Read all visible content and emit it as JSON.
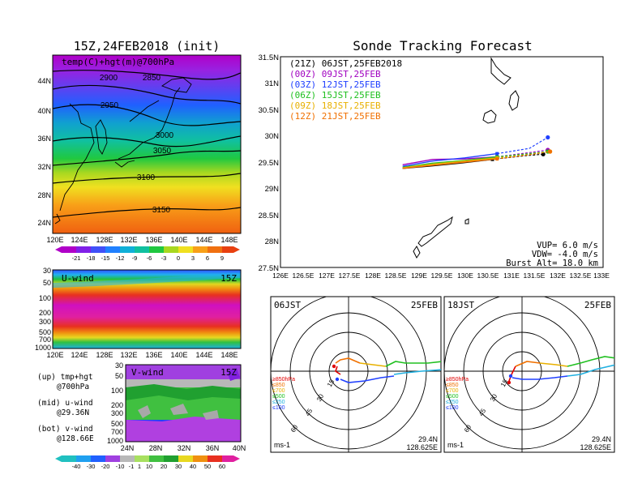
{
  "left": {
    "map_title": "15Z,24FEB2018 (init)",
    "map_subtitle": "temp(C)+hgt(m)@700hPa",
    "lat_labels": [
      "44N",
      "40N",
      "36N",
      "32N",
      "28N",
      "24N"
    ],
    "lon_labels": [
      "120E",
      "124E",
      "128E",
      "132E",
      "136E",
      "140E",
      "144E",
      "148E"
    ],
    "contour_labels": [
      "2900",
      "2850",
      "2950",
      "3000",
      "3050",
      "3100",
      "3150"
    ],
    "temp_colorbar": [
      "-21",
      "-18",
      "-15",
      "-12",
      "-9",
      "-6",
      "-3",
      "0",
      "3",
      "6",
      "9"
    ],
    "uwind_title": "U-wind",
    "uwind_time": "15Z",
    "pressure_labels": [
      "30",
      "50",
      "100",
      "200",
      "300",
      "500",
      "700",
      "1000"
    ],
    "vwind_title": "V-wind",
    "vwind_time": "15Z",
    "vwind_lat_labels": [
      "24N",
      "28N",
      "32N",
      "36N",
      "40N"
    ],
    "legend_up": "(up) tmp+hgt",
    "legend_up2": "@700hPa",
    "legend_mid": "(mid) u-wind",
    "legend_mid2": "@29.36N",
    "legend_bot": "(bot) v-wind",
    "legend_bot2": "@128.66E",
    "wind_colorbar": [
      "-40",
      "-30",
      "-20",
      "-10",
      "-1",
      "1",
      "10",
      "20",
      "30",
      "40",
      "50",
      "60"
    ]
  },
  "tracking": {
    "title": "Sonde Tracking Forecast",
    "forecast_times": [
      {
        "label": "(21Z) 06JST,25FEB2018",
        "color": "#000000"
      },
      {
        "label": "(00Z) 09JST,25FEB",
        "color": "#a000c0"
      },
      {
        "label": "(03Z) 12JST,25FEB",
        "color": "#2040ff"
      },
      {
        "label": "(06Z) 15JST,25FEB",
        "color": "#20c020"
      },
      {
        "label": "(09Z) 18JST,25FEB",
        "color": "#e8b000"
      },
      {
        "label": "(12Z) 21JST,25FEB",
        "color": "#f07000"
      }
    ],
    "lat_labels": [
      "31.5N",
      "31N",
      "30.5N",
      "30N",
      "29.5N",
      "29N",
      "28.5N",
      "28N",
      "27.5N"
    ],
    "lon_labels": [
      "126E",
      "126.5E",
      "127E",
      "127.5E",
      "128E",
      "128.5E",
      "129E",
      "129.5E",
      "130E",
      "130.5E",
      "131E",
      "131.5E",
      "132E",
      "132.5E",
      "133E"
    ],
    "vup": "VUP= 6.0 m/s",
    "vdw": "VDW= -4.0 m/s",
    "burst": "Burst Alt= 18.0 km"
  },
  "hodo_left": {
    "time": "06JST",
    "date": "25FEB",
    "rings": [
      "15",
      "30",
      "45",
      "60"
    ],
    "pressure_legend": [
      "≥850hPa",
      "≤850",
      "≤700",
      "≤500",
      "≤250",
      "≤100"
    ],
    "legend_colors": [
      "#e00000",
      "#f07000",
      "#e8b000",
      "#20c020",
      "#20b0e0",
      "#2040ff"
    ],
    "unit": "ms-1",
    "lat": "29.4N",
    "lon": "128.625E"
  },
  "hodo_right": {
    "time": "18JST",
    "date": "25FEB",
    "rings": [
      "15",
      "30",
      "45",
      "60"
    ],
    "pressure_legend": [
      "≥850hPa",
      "≤850",
      "≤700",
      "≤500",
      "≤250",
      "≤100"
    ],
    "legend_colors": [
      "#e00000",
      "#f07000",
      "#e8b000",
      "#20c020",
      "#20b0e0",
      "#2040ff"
    ],
    "unit": "ms-1",
    "lat": "29.4N",
    "lon": "128.625E"
  },
  "chart_data": [
    {
      "type": "heatmap",
      "title": "15Z,24FEB2018 (init)",
      "subtitle": "temp(C)+hgt(m)@700hPa",
      "xlim": [
        120,
        150
      ],
      "ylim": [
        22,
        48
      ],
      "contour_levels": [
        2850,
        2900,
        2950,
        3000,
        3050,
        3100,
        3150
      ],
      "color_levels": [
        -21,
        -18,
        -15,
        -12,
        -9,
        -6,
        -3,
        0,
        3,
        6,
        9
      ]
    },
    {
      "type": "heatmap",
      "title": "U-wind",
      "xlim": [
        120,
        150
      ],
      "yticks": [
        30,
        50,
        100,
        200,
        300,
        500,
        700,
        1000
      ]
    },
    {
      "type": "heatmap",
      "title": "V-wind",
      "xlim": [
        24,
        40
      ],
      "yticks": [
        30,
        50,
        100,
        200,
        300,
        500,
        700,
        1000
      ],
      "color_levels": [
        -40,
        -30,
        -20,
        -10,
        -1,
        1,
        10,
        20,
        30,
        40,
        50,
        60
      ]
    },
    {
      "type": "line",
      "title": "Sonde Tracking Forecast",
      "xlim": [
        126,
        133
      ],
      "ylim": [
        27.5,
        31.5
      ],
      "series": [
        {
          "name": "(21Z) 06JST,25FEB2018",
          "x": [
            128.65,
            129.2,
            129.9,
            130.6,
            131.3,
            131.7
          ],
          "y": [
            29.38,
            29.42,
            29.48,
            29.55,
            29.62,
            29.65
          ]
        },
        {
          "name": "(00Z) 09JST,25FEB",
          "x": [
            128.65,
            129.3,
            130.0,
            130.7,
            131.4,
            131.8
          ],
          "y": [
            29.45,
            29.55,
            29.56,
            29.6,
            29.68,
            29.73
          ]
        },
        {
          "name": "(03Z) 12JST,25FEB",
          "x": [
            128.65,
            129.3,
            130.0,
            130.7,
            131.4,
            131.8
          ],
          "y": [
            29.42,
            29.52,
            29.58,
            29.66,
            29.76,
            29.97
          ]
        },
        {
          "name": "(06Z) 15JST,25FEB",
          "x": [
            128.65,
            129.3,
            130.0,
            130.7,
            131.4,
            131.8
          ],
          "y": [
            29.4,
            29.48,
            29.53,
            29.6,
            29.66,
            29.7
          ]
        },
        {
          "name": "(09Z) 18JST,25FEB",
          "x": [
            128.65,
            129.3,
            130.0,
            130.7,
            131.4,
            131.85
          ],
          "y": [
            29.39,
            29.46,
            29.52,
            29.58,
            29.64,
            29.7
          ]
        },
        {
          "name": "(12Z) 21JST,25FEB",
          "x": [
            128.65,
            129.3,
            130.0,
            130.7,
            131.4,
            131.85
          ],
          "y": [
            29.38,
            29.44,
            29.5,
            29.56,
            29.64,
            29.7
          ]
        }
      ]
    }
  ]
}
